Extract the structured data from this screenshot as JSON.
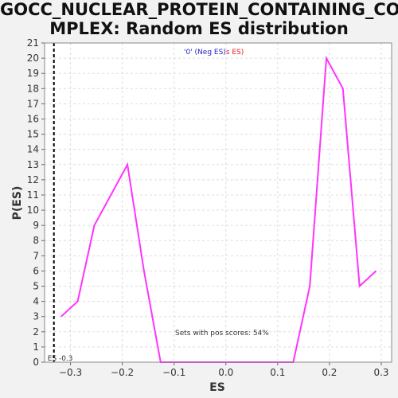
{
  "title_lines": [
    "GOCC_NUCLEAR_PROTEIN_CONTAINING_CO",
    "MPLEX: Random ES distribution"
  ],
  "chart_data": {
    "type": "line",
    "title": "GOCC_NUCLEAR_PROTEIN_CONTAINING_COMPLEX: Random ES distribution",
    "xlabel": "ES",
    "ylabel": "P(ES)",
    "xlim": [
      -0.35,
      0.32
    ],
    "ylim": [
      0,
      21
    ],
    "xticks": [
      -0.3,
      -0.2,
      -0.1,
      0.0,
      0.1,
      0.2,
      0.3
    ],
    "xtick_labels": [
      "−0.3",
      "−0.2",
      "−0.1",
      "0.0",
      "0.1",
      "0.2",
      "0.3"
    ],
    "yticks": [
      0,
      1,
      2,
      3,
      4,
      5,
      6,
      7,
      8,
      9,
      10,
      11,
      12,
      13,
      14,
      15,
      16,
      17,
      18,
      19,
      20,
      21
    ],
    "grid": true,
    "line_color": "#ff33ff",
    "x": [
      -0.318,
      -0.286,
      -0.254,
      -0.19,
      -0.158,
      -0.126,
      -0.094,
      0.13,
      0.162,
      0.194,
      0.226,
      0.258,
      0.29
    ],
    "y": [
      3,
      4,
      9,
      13,
      6,
      0,
      0,
      0,
      5,
      20,
      18,
      5,
      6
    ],
    "es_marker": {
      "x": -0.332,
      "label": "ES -0.3",
      "style": "dashed",
      "color": "#000000"
    },
    "legend": {
      "neg_text": "'0' (Neg ES)",
      "neg_color": "#2222cc",
      "pos_text": "s ES)",
      "pos_color": "#dd2222",
      "placement": "top-center"
    },
    "annotation": "Sets with pos scores: 54%"
  }
}
